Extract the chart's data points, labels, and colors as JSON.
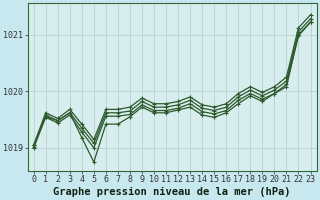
{
  "title": "Graphe pression niveau de la mer (hPa)",
  "xlabel_hours": [
    0,
    1,
    2,
    3,
    4,
    5,
    6,
    7,
    8,
    9,
    10,
    11,
    12,
    13,
    14,
    15,
    16,
    17,
    18,
    19,
    20,
    21,
    22,
    23
  ],
  "ylim": [
    1018.6,
    1021.55
  ],
  "yticks": [
    1019,
    1020,
    1021
  ],
  "background_color": "#c8e8f0",
  "plot_bg_color": "#d8eeee",
  "line_color": "#2d5a2d",
  "grid_color": "#b0cccc",
  "series_upper": [
    1019.05,
    1019.62,
    1019.52,
    1019.68,
    1019.42,
    1019.15,
    1019.68,
    1019.68,
    1019.72,
    1019.88,
    1019.78,
    1019.78,
    1019.82,
    1019.9,
    1019.76,
    1019.72,
    1019.78,
    1019.96,
    1020.08,
    1019.98,
    1020.08,
    1020.25,
    1021.12,
    1021.35
  ],
  "series_mid_high": [
    1019.02,
    1019.58,
    1019.48,
    1019.62,
    1019.35,
    1019.08,
    1019.62,
    1019.62,
    1019.65,
    1019.82,
    1019.72,
    1019.72,
    1019.76,
    1019.84,
    1019.7,
    1019.66,
    1019.72,
    1019.9,
    1020.02,
    1019.92,
    1020.02,
    1020.18,
    1021.05,
    1021.28
  ],
  "series_mid_low": [
    1019.0,
    1019.54,
    1019.44,
    1019.58,
    1019.28,
    1019.0,
    1019.56,
    1019.56,
    1019.59,
    1019.76,
    1019.66,
    1019.66,
    1019.7,
    1019.78,
    1019.64,
    1019.6,
    1019.66,
    1019.84,
    1019.96,
    1019.86,
    1019.96,
    1020.12,
    1020.98,
    1021.22
  ],
  "series_dip": [
    1019.05,
    1019.55,
    1019.48,
    1019.62,
    1019.18,
    1018.75,
    1019.42,
    1019.42,
    1019.55,
    1019.72,
    1019.62,
    1019.62,
    1019.67,
    1019.72,
    1019.58,
    1019.54,
    1019.62,
    1019.78,
    1019.92,
    1019.82,
    1019.96,
    1020.08,
    1021.0,
    1021.22
  ],
  "title_fontsize": 7.5,
  "tick_fontsize": 6.0
}
